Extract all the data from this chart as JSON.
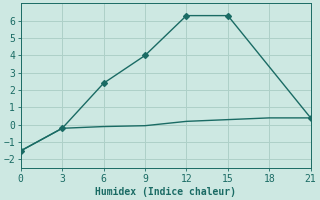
{
  "xlabel": "Humidex (Indice chaleur)",
  "background_color": "#cde8e2",
  "grid_color": "#aed0c8",
  "line_color": "#1a6b64",
  "xlim": [
    0,
    21
  ],
  "ylim": [
    -2.5,
    7.0
  ],
  "xticks": [
    0,
    3,
    6,
    9,
    12,
    15,
    18,
    21
  ],
  "yticks": [
    -2,
    -1,
    0,
    1,
    2,
    3,
    4,
    5,
    6
  ],
  "line1_x": [
    0,
    3,
    6,
    9,
    12,
    15,
    21
  ],
  "line1_y": [
    -1.5,
    -0.2,
    2.4,
    4.0,
    6.3,
    6.3,
    0.4
  ],
  "line2_x": [
    0,
    3,
    6,
    9,
    12,
    15,
    18,
    21
  ],
  "line2_y": [
    -1.5,
    -0.2,
    -0.1,
    -0.05,
    0.2,
    0.3,
    0.4,
    0.4
  ],
  "marker": "D",
  "marker_size": 3,
  "line_width": 1.0,
  "font_family": "monospace",
  "xlabel_fontsize": 7,
  "tick_fontsize": 7
}
